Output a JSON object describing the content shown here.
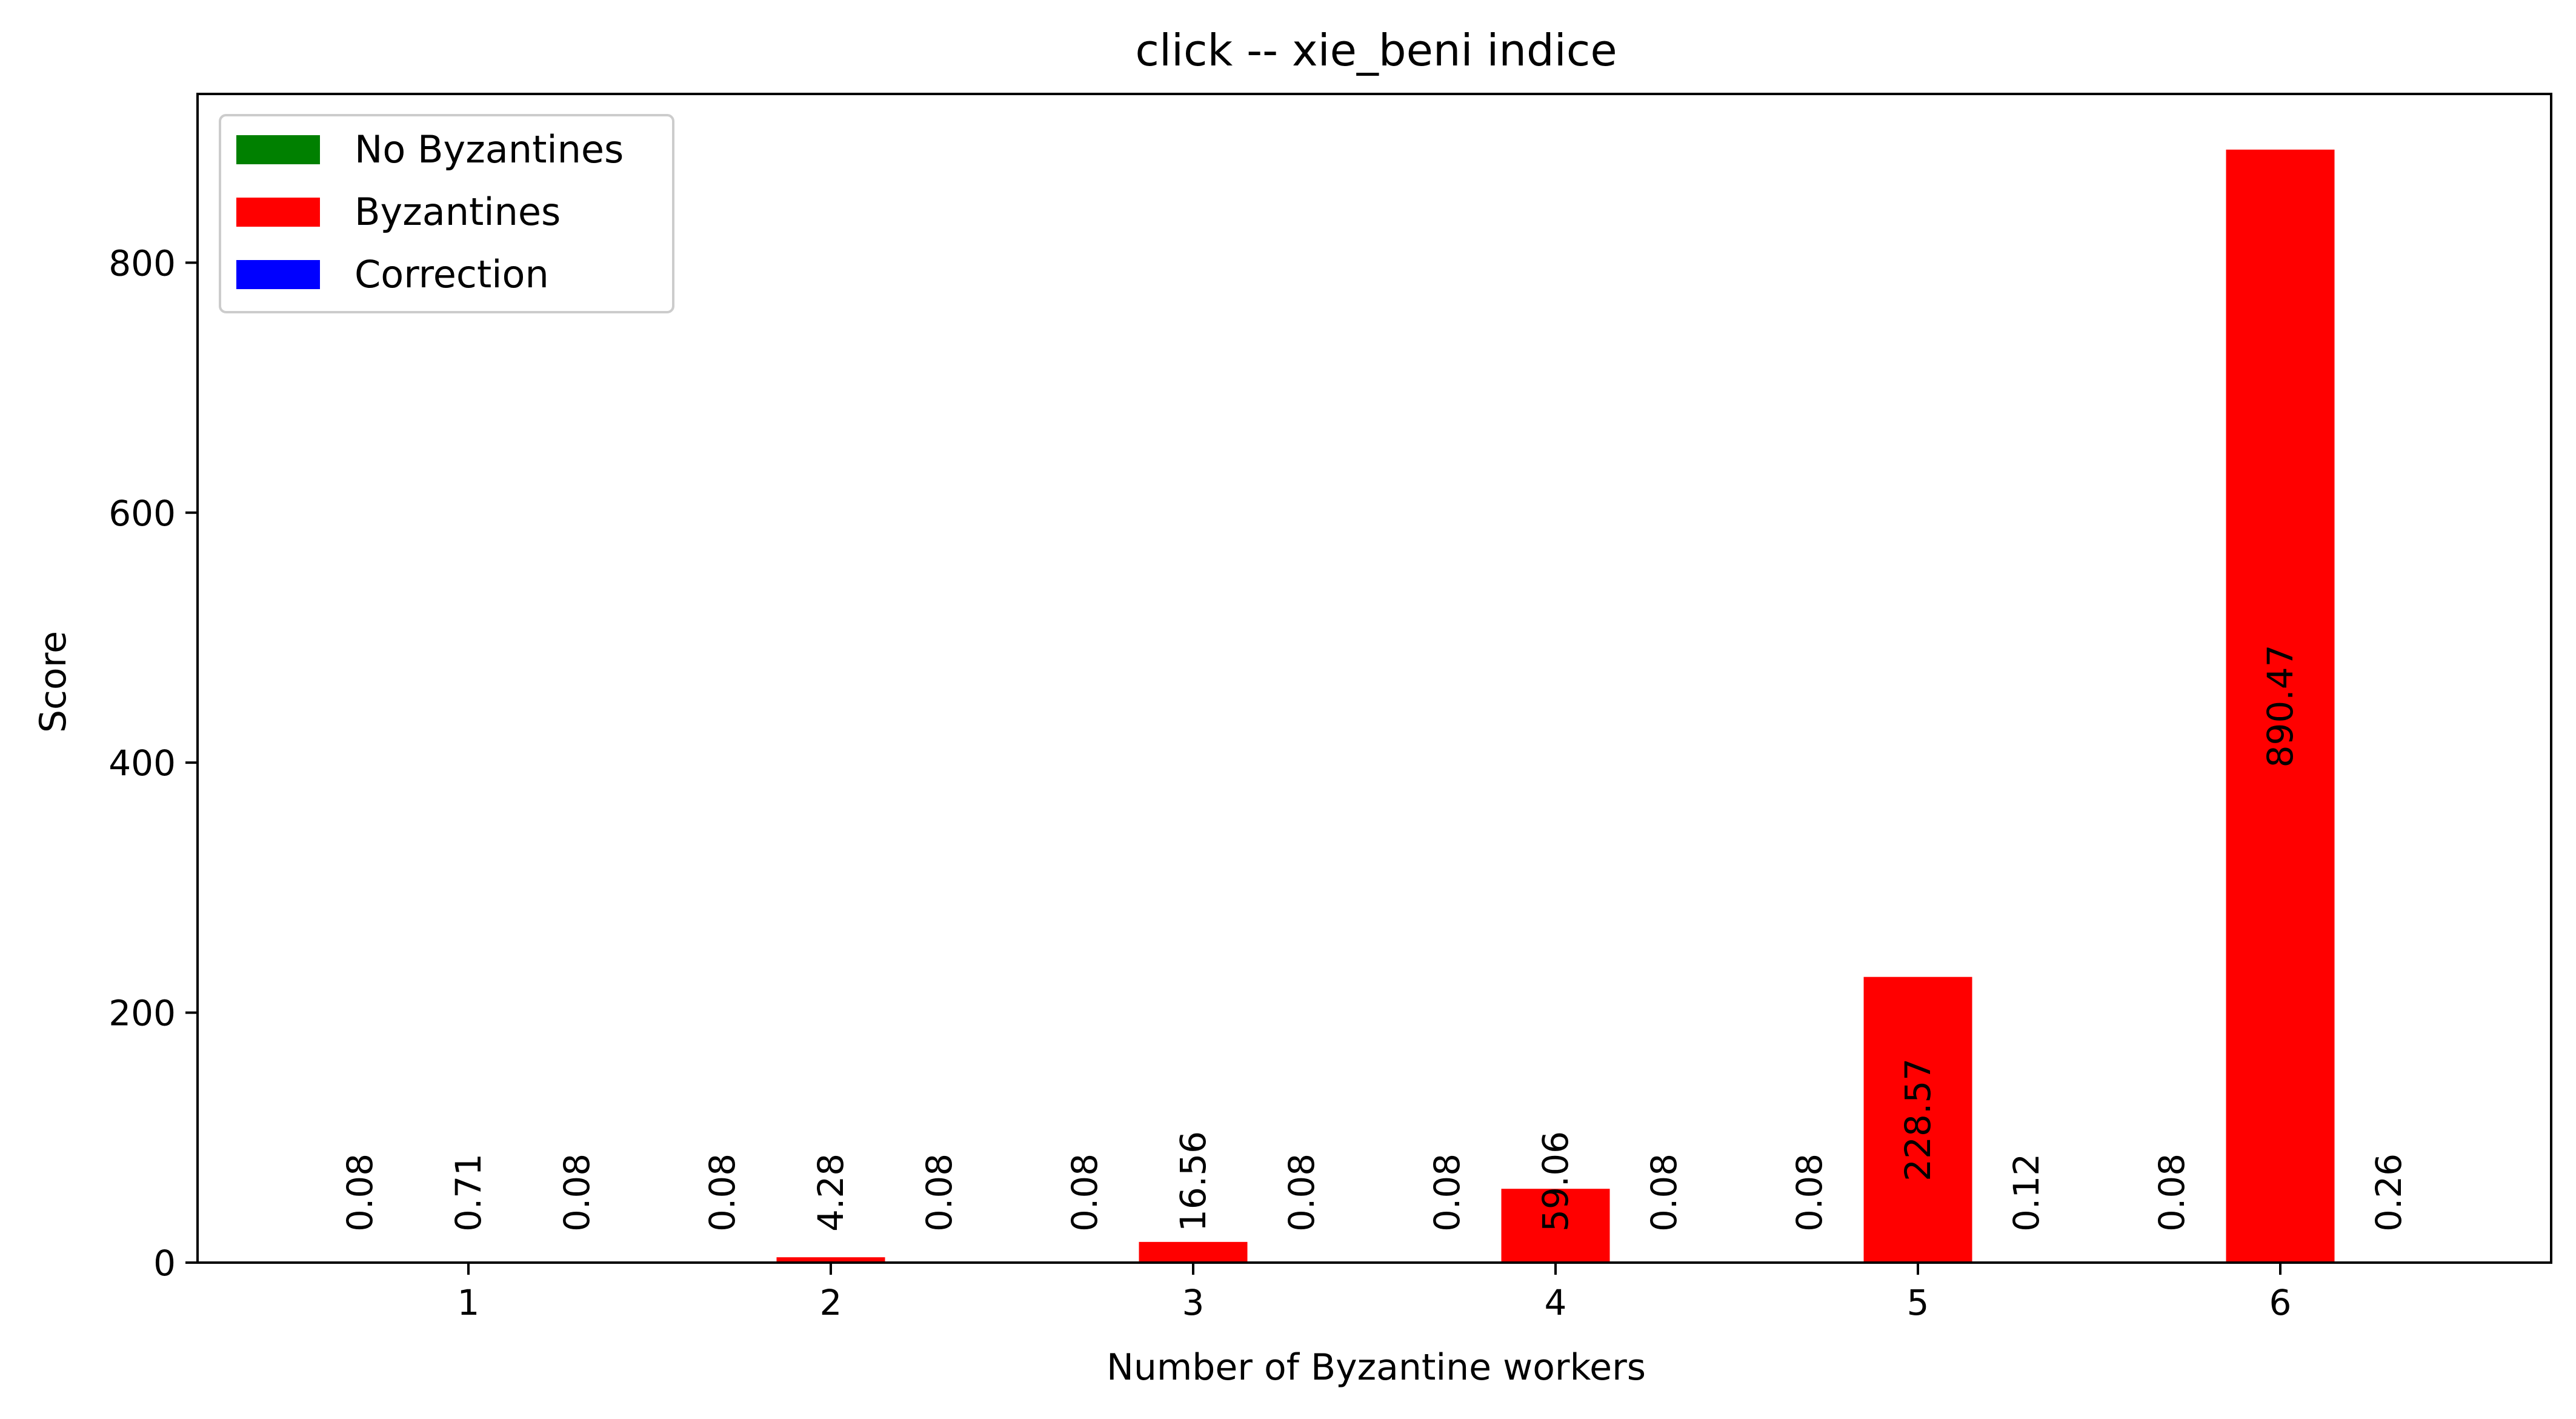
{
  "chart_data": {
    "type": "bar",
    "title": "click -- xie_beni indice",
    "xlabel": "Number of Byzantine workers",
    "ylabel": "Score",
    "categories": [
      "1",
      "2",
      "3",
      "4",
      "5",
      "6"
    ],
    "ylim": [
      0,
      935
    ],
    "yticks": [
      0,
      200,
      400,
      600,
      800
    ],
    "legend_position": "top-left",
    "grid": false,
    "series": [
      {
        "name": "No Byzantines",
        "color": "#008000",
        "values": [
          0.08,
          0.08,
          0.08,
          0.08,
          0.08,
          0.08
        ],
        "labels": [
          "0.08",
          "0.08",
          "0.08",
          "0.08",
          "0.08",
          "0.08"
        ]
      },
      {
        "name": "Byzantines",
        "color": "#ff0000",
        "values": [
          0.71,
          4.28,
          16.56,
          59.06,
          228.57,
          890.47
        ],
        "labels": [
          "0.71",
          "4.28",
          "16.56",
          "59.06",
          "228.57",
          "890.47"
        ]
      },
      {
        "name": "Correction",
        "color": "#0000ff",
        "values": [
          0.08,
          0.08,
          0.08,
          0.08,
          0.12,
          0.26
        ],
        "labels": [
          "0.08",
          "0.08",
          "0.08",
          "0.08",
          "0.12",
          "0.26"
        ]
      }
    ]
  }
}
